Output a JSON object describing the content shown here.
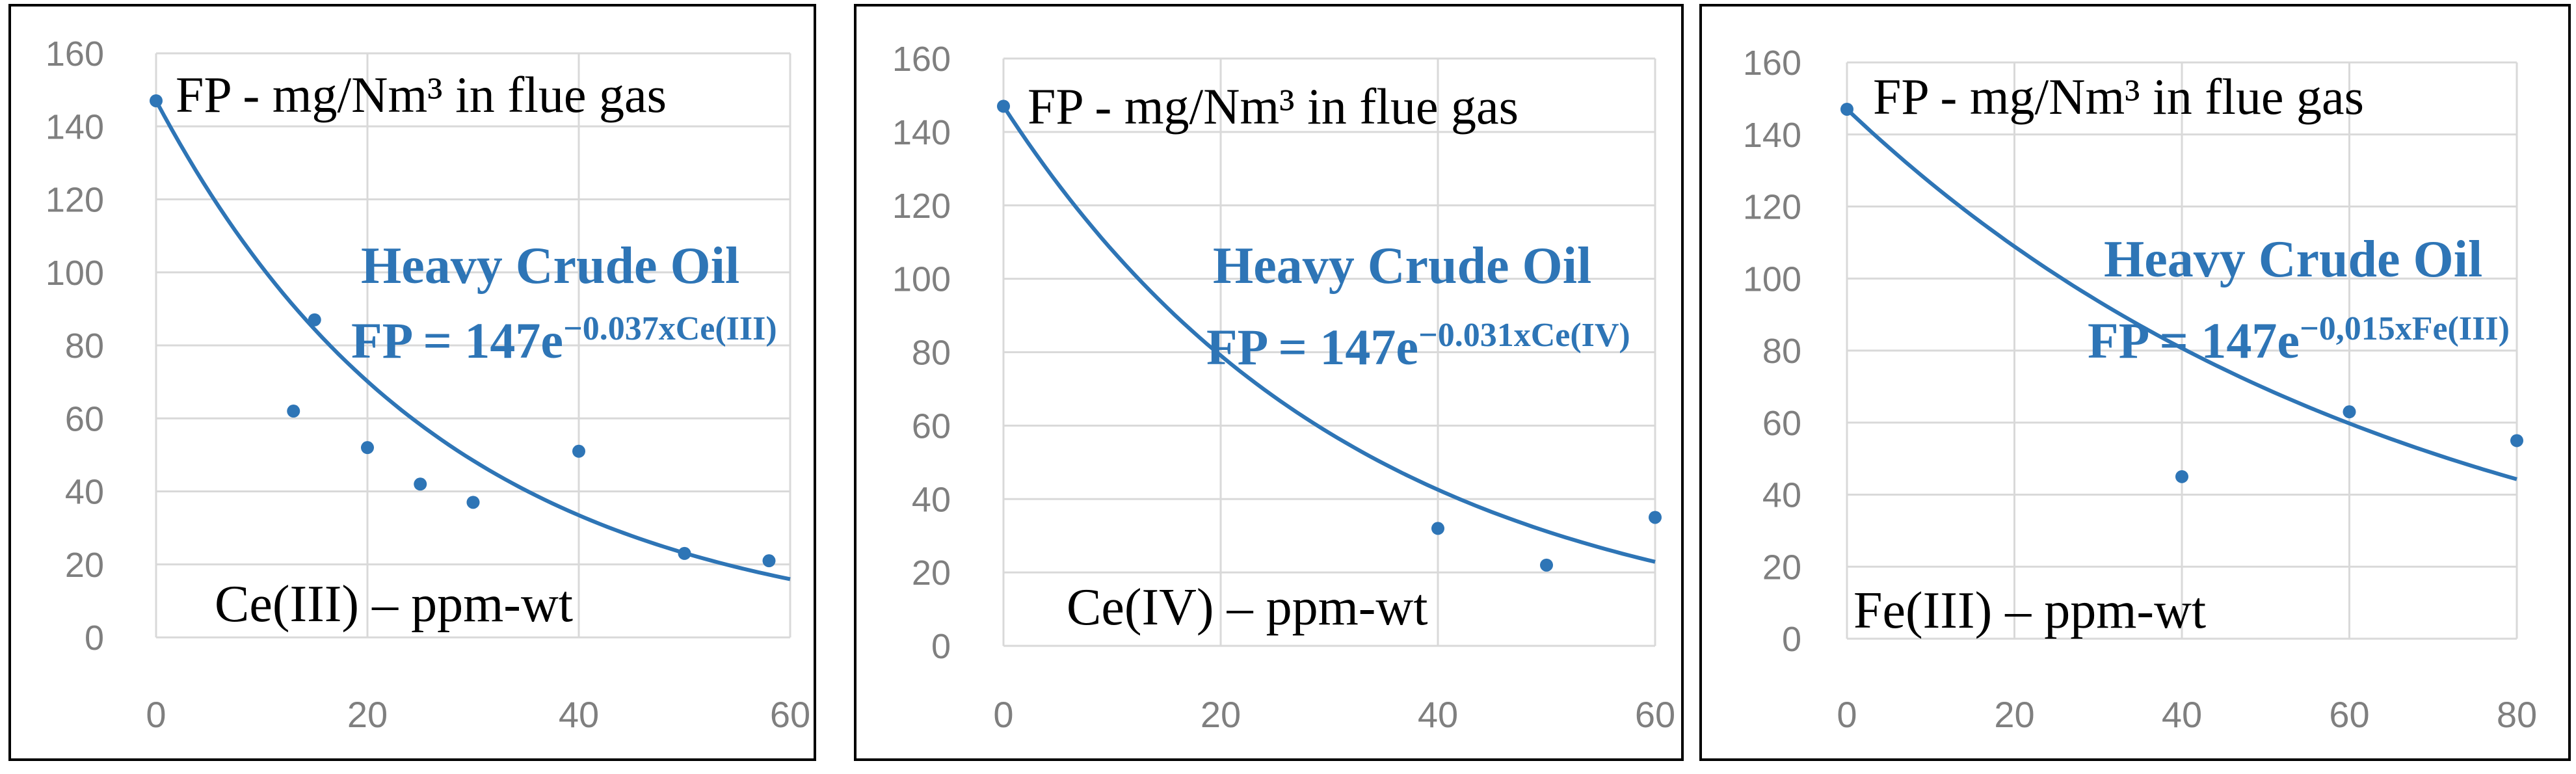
{
  "chart_data": [
    {
      "type": "scatter",
      "title": "FP - mg/Nm³ in flue gas",
      "xlabel": "Ce(III) – ppm-wt",
      "series_name": "Heavy Crude Oil",
      "equation": "FP = 147e",
      "equation_exponent": "−0.037xCe(III)",
      "trend": {
        "a": 147,
        "k": 0.037
      },
      "xlim": [
        0,
        60
      ],
      "ylim": [
        0,
        160
      ],
      "xticks": [
        0,
        20,
        40,
        60
      ],
      "yticks": [
        0,
        20,
        40,
        60,
        80,
        100,
        120,
        140,
        160
      ],
      "points": [
        {
          "x": 0,
          "y": 147
        },
        {
          "x": 13,
          "y": 62
        },
        {
          "x": 15,
          "y": 87
        },
        {
          "x": 20,
          "y": 52
        },
        {
          "x": 25,
          "y": 42
        },
        {
          "x": 30,
          "y": 37
        },
        {
          "x": 40,
          "y": 51
        },
        {
          "x": 50,
          "y": 23
        },
        {
          "x": 58,
          "y": 21
        }
      ]
    },
    {
      "type": "scatter",
      "title": "FP - mg/Nm³ in flue gas",
      "xlabel": "Ce(IV) – ppm-wt",
      "series_name": "Heavy Crude Oil",
      "equation": "FP = 147e",
      "equation_exponent": "−0.031xCe(IV)",
      "trend": {
        "a": 147,
        "k": 0.031
      },
      "xlim": [
        0,
        60
      ],
      "ylim": [
        0,
        160
      ],
      "xticks": [
        0,
        20,
        40,
        60
      ],
      "yticks": [
        0,
        20,
        40,
        60,
        80,
        100,
        120,
        140,
        160
      ],
      "points": [
        {
          "x": 0,
          "y": 147
        },
        {
          "x": 40,
          "y": 32
        },
        {
          "x": 50,
          "y": 22
        },
        {
          "x": 60,
          "y": 35
        }
      ]
    },
    {
      "type": "scatter",
      "title": "FP - mg/Nm³ in flue gas",
      "xlabel": "Fe(III) – ppm-wt",
      "series_name": "Heavy Crude Oil",
      "equation": "FP = 147e",
      "equation_exponent": "−0,015xFe(III)",
      "trend": {
        "a": 147,
        "k": 0.015
      },
      "xlim": [
        0,
        80
      ],
      "ylim": [
        0,
        160
      ],
      "xticks": [
        0,
        20,
        40,
        60,
        80
      ],
      "yticks": [
        0,
        20,
        40,
        60,
        80,
        100,
        120,
        140,
        160
      ],
      "points": [
        {
          "x": 0,
          "y": 147
        },
        {
          "x": 40,
          "y": 45
        },
        {
          "x": 60,
          "y": 63
        },
        {
          "x": 80,
          "y": 55
        }
      ]
    }
  ],
  "colors": {
    "series": "#2e75b6",
    "grid": "#d9d9d9",
    "ticks": "#7f7f7f",
    "frame": "#000000",
    "text": "#000000"
  }
}
